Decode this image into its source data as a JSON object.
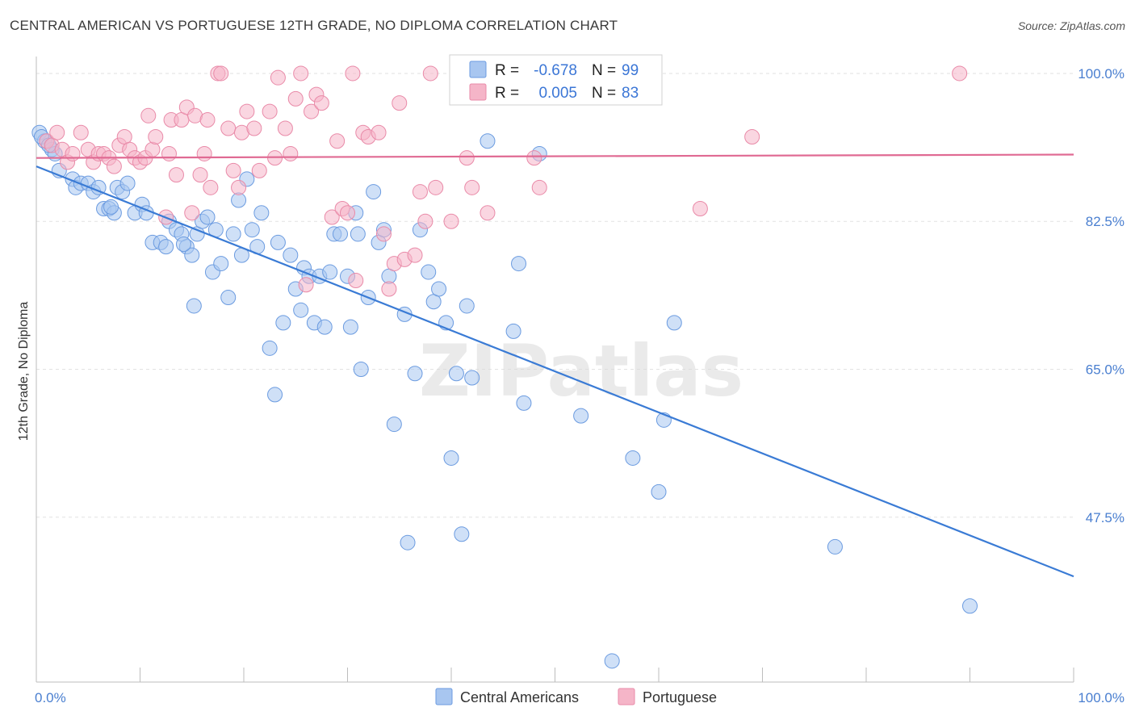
{
  "chart_data": {
    "type": "scatter",
    "title": "CENTRAL AMERICAN VS PORTUGUESE 12TH GRADE, NO DIPLOMA CORRELATION CHART",
    "source": "Source: ZipAtlas.com",
    "ylabel": "12th Grade, No Diploma",
    "xlabel": "",
    "xlim": [
      0,
      100
    ],
    "ylim": [
      28,
      102
    ],
    "y_ticks": [
      {
        "value": 100,
        "label": "100.0%"
      },
      {
        "value": 82.5,
        "label": "82.5%"
      },
      {
        "value": 65,
        "label": "65.0%"
      },
      {
        "value": 47.5,
        "label": "47.5%"
      }
    ],
    "x_tick_labels": {
      "left": "0.0%",
      "right": "100.0%"
    },
    "watermark": "ZIPatlas",
    "legend": [
      {
        "series": "Central Americans",
        "r_label": "R =",
        "r_value": "-0.678",
        "n_label": "N =",
        "n_value": "99",
        "color": "#a8c6f0",
        "stroke": "#6b9be0"
      },
      {
        "series": "Portuguese",
        "r_label": "R =",
        "r_value": "0.005",
        "n_label": "N =",
        "n_value": "83",
        "color": "#f5b5c8",
        "stroke": "#e98aa8"
      }
    ],
    "series": [
      {
        "name": "Central Americans",
        "color": "#a8c6f0",
        "stroke": "#6b9be0",
        "trend": {
          "x": [
            0,
            100
          ],
          "y": [
            89.0,
            40.5
          ],
          "color": "#3a7bd5"
        },
        "points": [
          [
            0.3,
            93.0
          ],
          [
            0.8,
            92.0
          ],
          [
            1.5,
            91.0
          ],
          [
            1.8,
            90.5
          ],
          [
            2.2,
            88.5
          ],
          [
            3.5,
            87.5
          ],
          [
            3.8,
            86.5
          ],
          [
            4.3,
            87.0
          ],
          [
            5.0,
            87.0
          ],
          [
            5.5,
            86.0
          ],
          [
            6.0,
            86.5
          ],
          [
            6.5,
            84.0
          ],
          [
            7.0,
            84.0
          ],
          [
            7.5,
            83.5
          ],
          [
            7.8,
            86.5
          ],
          [
            8.3,
            86.0
          ],
          [
            8.8,
            87.0
          ],
          [
            9.5,
            83.5
          ],
          [
            10.2,
            84.5
          ],
          [
            10.6,
            83.5
          ],
          [
            11.2,
            80.0
          ],
          [
            12.0,
            80.0
          ],
          [
            12.5,
            79.5
          ],
          [
            12.8,
            82.5
          ],
          [
            13.5,
            81.5
          ],
          [
            14.0,
            81.0
          ],
          [
            14.5,
            79.5
          ],
          [
            15.0,
            78.5
          ],
          [
            15.2,
            72.5
          ],
          [
            15.5,
            81.0
          ],
          [
            16.0,
            82.5
          ],
          [
            16.5,
            83.0
          ],
          [
            17.0,
            76.5
          ],
          [
            17.3,
            81.5
          ],
          [
            17.8,
            77.5
          ],
          [
            18.5,
            73.5
          ],
          [
            19.0,
            81.0
          ],
          [
            19.5,
            85.0
          ],
          [
            19.8,
            78.5
          ],
          [
            20.3,
            87.5
          ],
          [
            20.8,
            81.5
          ],
          [
            21.3,
            79.5
          ],
          [
            21.7,
            83.5
          ],
          [
            22.5,
            67.5
          ],
          [
            23.0,
            62.0
          ],
          [
            23.3,
            80.0
          ],
          [
            23.8,
            70.5
          ],
          [
            24.5,
            78.5
          ],
          [
            25.0,
            74.5
          ],
          [
            25.5,
            72.0
          ],
          [
            25.8,
            77.0
          ],
          [
            26.3,
            76.0
          ],
          [
            26.8,
            70.5
          ],
          [
            27.3,
            76.0
          ],
          [
            27.8,
            70.0
          ],
          [
            28.3,
            76.5
          ],
          [
            28.7,
            81.0
          ],
          [
            29.3,
            81.0
          ],
          [
            30.0,
            76.0
          ],
          [
            30.3,
            70.0
          ],
          [
            30.8,
            83.5
          ],
          [
            31.3,
            65.0
          ],
          [
            32.0,
            73.5
          ],
          [
            32.5,
            86.0
          ],
          [
            33.0,
            80.0
          ],
          [
            33.5,
            81.5
          ],
          [
            34.0,
            76.0
          ],
          [
            34.5,
            58.5
          ],
          [
            35.5,
            71.5
          ],
          [
            36.5,
            64.5
          ],
          [
            37.0,
            81.5
          ],
          [
            37.8,
            76.5
          ],
          [
            38.3,
            73.0
          ],
          [
            38.8,
            74.5
          ],
          [
            39.5,
            70.5
          ],
          [
            40.0,
            54.5
          ],
          [
            40.5,
            64.5
          ],
          [
            41.0,
            45.5
          ],
          [
            41.5,
            72.5
          ],
          [
            42.0,
            64.0
          ],
          [
            35.8,
            44.5
          ],
          [
            43.5,
            92.0
          ],
          [
            46.0,
            69.5
          ],
          [
            46.5,
            77.5
          ],
          [
            47.0,
            61.0
          ],
          [
            48.5,
            90.5
          ],
          [
            52.5,
            59.5
          ],
          [
            55.5,
            30.5
          ],
          [
            57.5,
            54.5
          ],
          [
            60.0,
            50.5
          ],
          [
            60.5,
            59.0
          ],
          [
            61.5,
            70.5
          ],
          [
            77.0,
            44.0
          ],
          [
            90.0,
            37.0
          ],
          [
            0.5,
            92.5
          ],
          [
            1.2,
            91.5
          ],
          [
            7.2,
            84.2
          ],
          [
            14.2,
            79.8
          ],
          [
            31.0,
            81.0
          ]
        ]
      },
      {
        "name": "Portuguese",
        "color": "#f5b5c8",
        "stroke": "#e98aa8",
        "trend": {
          "x": [
            0,
            100
          ],
          "y": [
            90.0,
            90.4
          ],
          "color": "#e06a93"
        },
        "points": [
          [
            1.0,
            92.0
          ],
          [
            1.5,
            91.5
          ],
          [
            2.0,
            93.0
          ],
          [
            2.5,
            91.0
          ],
          [
            3.0,
            89.5
          ],
          [
            3.5,
            90.5
          ],
          [
            4.3,
            93.0
          ],
          [
            5.0,
            91.0
          ],
          [
            5.5,
            89.5
          ],
          [
            6.0,
            90.5
          ],
          [
            6.5,
            90.5
          ],
          [
            7.0,
            90.0
          ],
          [
            7.5,
            89.0
          ],
          [
            8.0,
            91.5
          ],
          [
            8.5,
            92.5
          ],
          [
            9.0,
            91.0
          ],
          [
            9.5,
            90.0
          ],
          [
            10.0,
            89.5
          ],
          [
            10.5,
            90.0
          ],
          [
            10.8,
            95.0
          ],
          [
            11.2,
            91.0
          ],
          [
            11.5,
            92.5
          ],
          [
            12.5,
            83.0
          ],
          [
            12.8,
            90.5
          ],
          [
            13.0,
            94.5
          ],
          [
            13.5,
            88.0
          ],
          [
            14.0,
            94.5
          ],
          [
            14.5,
            96.0
          ],
          [
            15.0,
            83.5
          ],
          [
            15.3,
            95.0
          ],
          [
            15.8,
            88.0
          ],
          [
            16.2,
            90.5
          ],
          [
            16.5,
            94.5
          ],
          [
            16.8,
            86.5
          ],
          [
            17.5,
            100.0
          ],
          [
            17.8,
            100.0
          ],
          [
            18.5,
            93.5
          ],
          [
            19.0,
            88.5
          ],
          [
            19.5,
            86.5
          ],
          [
            19.8,
            93.0
          ],
          [
            20.3,
            95.5
          ],
          [
            21.0,
            93.5
          ],
          [
            21.5,
            88.5
          ],
          [
            22.5,
            95.5
          ],
          [
            23.0,
            90.0
          ],
          [
            23.3,
            99.5
          ],
          [
            24.0,
            93.5
          ],
          [
            24.5,
            90.5
          ],
          [
            25.0,
            97.0
          ],
          [
            25.5,
            100.0
          ],
          [
            26.0,
            75.0
          ],
          [
            26.5,
            95.5
          ],
          [
            27.0,
            97.5
          ],
          [
            27.5,
            96.5
          ],
          [
            28.5,
            83.0
          ],
          [
            29.0,
            92.0
          ],
          [
            29.5,
            84.0
          ],
          [
            30.0,
            83.5
          ],
          [
            30.5,
            100.0
          ],
          [
            30.8,
            75.5
          ],
          [
            31.5,
            93.0
          ],
          [
            32.0,
            92.5
          ],
          [
            33.0,
            93.0
          ],
          [
            33.5,
            81.0
          ],
          [
            34.0,
            74.5
          ],
          [
            34.5,
            77.5
          ],
          [
            35.0,
            96.5
          ],
          [
            35.5,
            78.0
          ],
          [
            36.5,
            78.5
          ],
          [
            37.0,
            86.0
          ],
          [
            37.5,
            82.5
          ],
          [
            38.0,
            100.0
          ],
          [
            38.5,
            86.5
          ],
          [
            40.0,
            82.5
          ],
          [
            41.5,
            90.0
          ],
          [
            42.0,
            86.5
          ],
          [
            43.5,
            83.5
          ],
          [
            48.0,
            90.0
          ],
          [
            48.5,
            86.5
          ],
          [
            57.5,
            100.0
          ],
          [
            64.0,
            84.0
          ],
          [
            69.0,
            92.5
          ],
          [
            89.0,
            100.0
          ]
        ]
      }
    ]
  }
}
